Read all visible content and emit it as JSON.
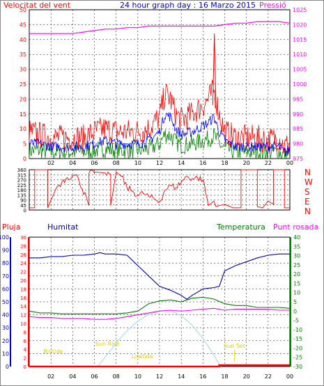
{
  "page": {
    "title": "24 hour graph day : 16 Marzo 2015",
    "label_wind": "Velocitat del vent",
    "label_pressure": "Pressió",
    "label_rain": "Pluja",
    "label_humidity": "Humitat",
    "label_temperature": "Temperatura",
    "label_dewpoint": "Punt rosada",
    "dir_letters": [
      "N",
      "W",
      "S",
      "E",
      "N"
    ]
  },
  "colors": {
    "wind": "#ff0000",
    "avg_wind": "#0000ff",
    "wind_low": "#008000",
    "pressure": "#ff00ff",
    "direction": "#ff0000",
    "humidity": "#0000aa",
    "temperature": "#008000",
    "dewpoint": "#ff00ff",
    "solar": "#b0d8f0",
    "rain": "#ff0000",
    "sun_labels": "#e0d000",
    "grid": "#000000"
  },
  "chart_data": [
    {
      "type": "line",
      "name": "wind-panel",
      "title": "24 hour graph day : 16 Marzo 2015",
      "ylabel_left": "Velocitat del vent",
      "ylabel_right": "Pressió",
      "x_tick_labels": [
        "02",
        "04",
        "06",
        "08",
        "10",
        "12",
        "14",
        "16",
        "18",
        "20",
        "22",
        "00"
      ],
      "x_ticks_hours": [
        2,
        4,
        6,
        8,
        10,
        12,
        14,
        16,
        18,
        20,
        22,
        24
      ],
      "ylim_left": [
        0,
        50
      ],
      "yticks_left": [
        "0",
        "5",
        "10",
        "15",
        "20",
        "25",
        "30",
        "35",
        "40",
        "45",
        "50"
      ],
      "ylim_right": [
        975,
        1025
      ],
      "yticks_right": [
        "975",
        "980",
        "985",
        "990",
        "995",
        "1000",
        "1005",
        "1010",
        "1015",
        "1020",
        "1025"
      ],
      "grid": true,
      "series": [
        {
          "hours": [
            0,
            1,
            2,
            3,
            4,
            5,
            6,
            7,
            8,
            9,
            10,
            11,
            12,
            12.5,
            13,
            13.5,
            14,
            15,
            16,
            16.5,
            17,
            17.5,
            18,
            19,
            20,
            21,
            22,
            23,
            23.5,
            24
          ],
          "values": [
            9,
            8,
            7,
            7,
            7,
            7,
            9,
            10,
            9,
            9,
            9,
            10,
            14,
            22,
            20,
            15,
            13,
            15,
            18,
            20,
            23,
            15,
            9,
            7,
            7,
            7,
            6,
            7,
            4,
            5
          ]
        },
        {
          "hours": [
            0,
            1,
            2,
            3,
            4,
            5,
            6,
            7,
            8,
            9,
            10,
            11,
            12,
            12.5,
            13,
            13.5,
            14,
            15,
            16,
            16.5,
            17,
            17.5,
            18,
            19,
            20,
            21,
            22,
            23,
            23.5,
            24
          ],
          "values": [
            5,
            5,
            4,
            4,
            4,
            4,
            5,
            6,
            5,
            5,
            5,
            6,
            9,
            15,
            14,
            10,
            8,
            9,
            11,
            12,
            14,
            9,
            6,
            4,
            4,
            4,
            4,
            4,
            2,
            3
          ]
        },
        {
          "hours": [
            0,
            1,
            2,
            3,
            4,
            5,
            6,
            7,
            8,
            9,
            10,
            11,
            12,
            13,
            14,
            15,
            16,
            17,
            18,
            19,
            20,
            21,
            22,
            23,
            24
          ],
          "values": [
            1017,
            1017,
            1017,
            1017,
            1017,
            1017.5,
            1018,
            1018.5,
            1018.5,
            1019,
            1019,
            1019.5,
            1019.5,
            1019.5,
            1019.5,
            1019.5,
            1019.5,
            1019.5,
            1020,
            1020.5,
            1020.5,
            1021,
            1021,
            1021,
            1020.5
          ]
        }
      ]
    },
    {
      "type": "line",
      "name": "direction-panel",
      "ylim": [
        0,
        360
      ],
      "yticks": [
        "0",
        "45",
        "90",
        "135",
        "180",
        "225",
        "270",
        "315",
        "360"
      ],
      "x_ticks_hours": [
        2,
        4,
        6,
        8,
        10,
        12,
        14,
        16,
        18,
        20,
        22,
        24
      ],
      "series": [
        {
          "hours": [
            0,
            0.5,
            0.5,
            1.7,
            1.7,
            2.5,
            3.0,
            3.5,
            4.0,
            4.5,
            5.5,
            5.5,
            6.0,
            6.0,
            7.0,
            7.5,
            7.5,
            8.0,
            8.5,
            9.0,
            9.5,
            10.0,
            10.5,
            11.0,
            11.5,
            12.0,
            12.5,
            13.0,
            13.5,
            14.0,
            14.5,
            15.0,
            15.5,
            16.0,
            16.5,
            17.0,
            17.2,
            17.5,
            18.0,
            18.5,
            18.8,
            19.5,
            19.5,
            21.0,
            21.0,
            21.5,
            22.0,
            22.5,
            22.5,
            23.5,
            23.5,
            24
          ],
          "values": [
            20,
            20,
            360,
            360,
            20,
            200,
            250,
            290,
            310,
            290,
            40,
            330,
            330,
            340,
            330,
            320,
            40,
            340,
            300,
            200,
            170,
            130,
            150,
            120,
            100,
            70,
            180,
            220,
            200,
            250,
            300,
            280,
            290,
            270,
            40,
            80,
            30,
            40,
            50,
            30,
            20,
            20,
            360,
            360,
            30,
            20,
            80,
            50,
            360,
            360,
            20,
            20
          ]
        }
      ]
    },
    {
      "type": "line",
      "name": "humidity-temp-panel",
      "ylabel_rain": "Pluja",
      "ylabel_humidity": "Humitat",
      "ylabel_temperature": "Temperatura",
      "ylabel_dewpoint": "Punt rosada",
      "x_tick_labels": [
        "02",
        "04",
        "06",
        "08",
        "10",
        "12",
        "14",
        "16",
        "18",
        "20",
        "22",
        "00"
      ],
      "x_ticks_hours": [
        2,
        4,
        6,
        8,
        10,
        12,
        14,
        16,
        18,
        20,
        22,
        24
      ],
      "ylim_humidity": [
        0,
        100
      ],
      "yticks_humidity": [
        "0",
        "10",
        "20",
        "30",
        "40",
        "50",
        "60",
        "70",
        "80",
        "90",
        "100"
      ],
      "ylim_rain": [
        0,
        30
      ],
      "yticks_rain": [
        "0",
        "2",
        "4",
        "6",
        "8",
        "10",
        "12",
        "14",
        "16",
        "18",
        "20",
        "22",
        "24",
        "26",
        "28",
        "30"
      ],
      "ylim_temperature": [
        -30,
        40
      ],
      "yticks_temperature": [
        "-30",
        "-25",
        "-20",
        "-15",
        "-10",
        "-5",
        "0",
        "5",
        "10",
        "15",
        "20",
        "25",
        "30",
        "35",
        "40"
      ],
      "series": [
        {
          "hours": [
            0,
            1,
            2,
            3,
            4,
            5,
            6,
            6.5,
            7,
            8,
            9,
            10,
            11,
            12,
            13,
            14,
            14.5,
            15,
            16,
            17,
            17.5,
            18,
            19,
            20,
            21,
            22,
            23,
            24
          ],
          "values": [
            84,
            84,
            85,
            85,
            86,
            86,
            87,
            88,
            87,
            87,
            86,
            78,
            70,
            62,
            59,
            55,
            52,
            55,
            60,
            61,
            62,
            74,
            78,
            81,
            84,
            86,
            87,
            87
          ]
        },
        {
          "hours": [
            0,
            1,
            2,
            3,
            4,
            5,
            6,
            7,
            8,
            9,
            10,
            11,
            12,
            13,
            14,
            15,
            16,
            17,
            18,
            19,
            20,
            21,
            22,
            23,
            24
          ],
          "values": [
            0,
            -1,
            -1,
            -1.5,
            -1.5,
            -1.5,
            -1.5,
            -1.5,
            -1.5,
            -1,
            0,
            4,
            5.5,
            6,
            5,
            7,
            7.5,
            6.5,
            4,
            3,
            3,
            2,
            2,
            2,
            1.5
          ]
        },
        {
          "hours": [
            0,
            1,
            2,
            3,
            4,
            5,
            6,
            7,
            8,
            9,
            10,
            11,
            12,
            13,
            14,
            15,
            16,
            17,
            18,
            19,
            20,
            21,
            22,
            23,
            24
          ],
          "values": [
            -3,
            -3.5,
            -3.5,
            -4,
            -4,
            -4,
            -4.5,
            -4.5,
            -4,
            -3,
            -2,
            -1,
            0,
            0.5,
            0,
            0.5,
            1,
            1.5,
            0.5,
            1,
            1,
            1,
            1,
            0.5,
            0.5
          ]
        },
        {
          "name": "Rain",
          "hours": [
            0,
            17.5,
            17.5,
            24
          ],
          "values": [
            0,
            0,
            0.3,
            0.3
          ]
        }
      ],
      "solar": {
        "hours": [
          6.3,
          7,
          8,
          9,
          10,
          11,
          12,
          12.6,
          13,
          14,
          15,
          16,
          17,
          17.6
        ],
        "values": [
          0,
          2.2,
          5.5,
          8.3,
          10.5,
          12.1,
          12.9,
          13,
          12.9,
          11.8,
          9.6,
          6.5,
          2.7,
          0
        ]
      },
      "annotations": [
        {
          "text": "Sun Rise",
          "hour": 7.2
        },
        {
          "text": "Lowtide",
          "hour": 10.4
        },
        {
          "text": "Sun Set",
          "hour": 18.9
        },
        {
          "text": "Bigtide",
          "hour": 2.2
        }
      ]
    }
  ]
}
